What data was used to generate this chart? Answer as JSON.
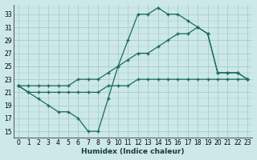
{
  "xlabel": "Humidex (Indice chaleur)",
  "bg_color": "#cce8e8",
  "grid_color": "#aacccc",
  "line_color": "#1a6b5a",
  "xlim": [
    -0.5,
    23.5
  ],
  "ylim": [
    14,
    34.5
  ],
  "yticks": [
    15,
    17,
    19,
    21,
    23,
    25,
    27,
    29,
    31,
    33
  ],
  "xticks": [
    0,
    1,
    2,
    3,
    4,
    5,
    6,
    7,
    8,
    9,
    10,
    11,
    12,
    13,
    14,
    15,
    16,
    17,
    18,
    19,
    20,
    21,
    22,
    23
  ],
  "line1_x": [
    0,
    1,
    2,
    3,
    4,
    5,
    6,
    7,
    8,
    9,
    10,
    11,
    12,
    13,
    14,
    15,
    16,
    17,
    18,
    19,
    20,
    21,
    22,
    23
  ],
  "line1_y": [
    22,
    21,
    20,
    19,
    18,
    18,
    17,
    15,
    15,
    20,
    25,
    29,
    33,
    33,
    34,
    33,
    33,
    32,
    31,
    30,
    24,
    24,
    24,
    23
  ],
  "line2_x": [
    0,
    1,
    2,
    3,
    4,
    5,
    6,
    7,
    8,
    9,
    10,
    11,
    12,
    13,
    14,
    15,
    16,
    17,
    18,
    19,
    20,
    21,
    22,
    23
  ],
  "line2_y": [
    22,
    22,
    22,
    22,
    22,
    22,
    23,
    23,
    23,
    24,
    25,
    26,
    27,
    27,
    28,
    29,
    30,
    30,
    31,
    30,
    24,
    24,
    24,
    23
  ],
  "line3_x": [
    0,
    1,
    2,
    3,
    4,
    5,
    6,
    7,
    8,
    9,
    10,
    11,
    12,
    13,
    14,
    15,
    16,
    17,
    18,
    19,
    20,
    21,
    22,
    23
  ],
  "line3_y": [
    22,
    21,
    21,
    21,
    21,
    21,
    21,
    21,
    21,
    22,
    22,
    22,
    23,
    23,
    23,
    23,
    23,
    23,
    23,
    23,
    23,
    23,
    23,
    23
  ]
}
